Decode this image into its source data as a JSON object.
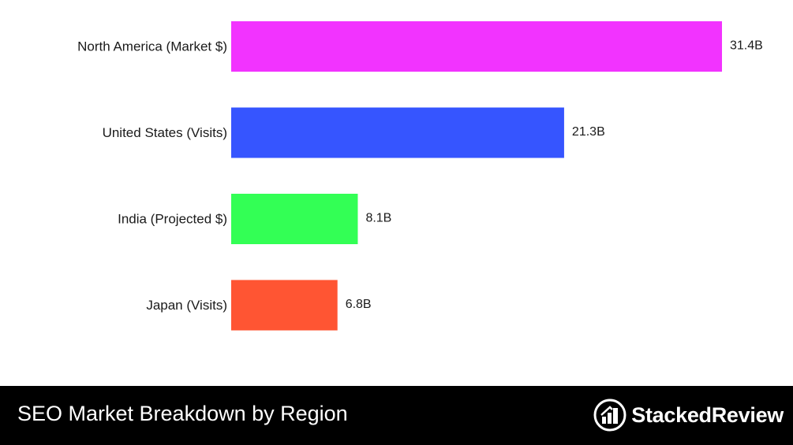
{
  "chart_data": {
    "type": "bar",
    "orientation": "horizontal",
    "categories": [
      "North America (Market $)",
      "United States (Visits)",
      "India (Projected $)",
      "Japan (Visits)"
    ],
    "values": [
      31.4,
      21.3,
      8.1,
      6.8
    ],
    "value_labels": [
      "31.4B",
      "21.3B",
      "8.1B",
      "6.8B"
    ],
    "colors": [
      "#f233ff",
      "#3655ff",
      "#33ff55",
      "#ff5533"
    ],
    "xlim": [
      0,
      31.4
    ],
    "grid": false,
    "legend": "none"
  },
  "footer": {
    "title": "SEO Market Breakdown by Region",
    "brand_name": "StackedReview",
    "brand_icon": "stacked-review-logo-icon"
  }
}
